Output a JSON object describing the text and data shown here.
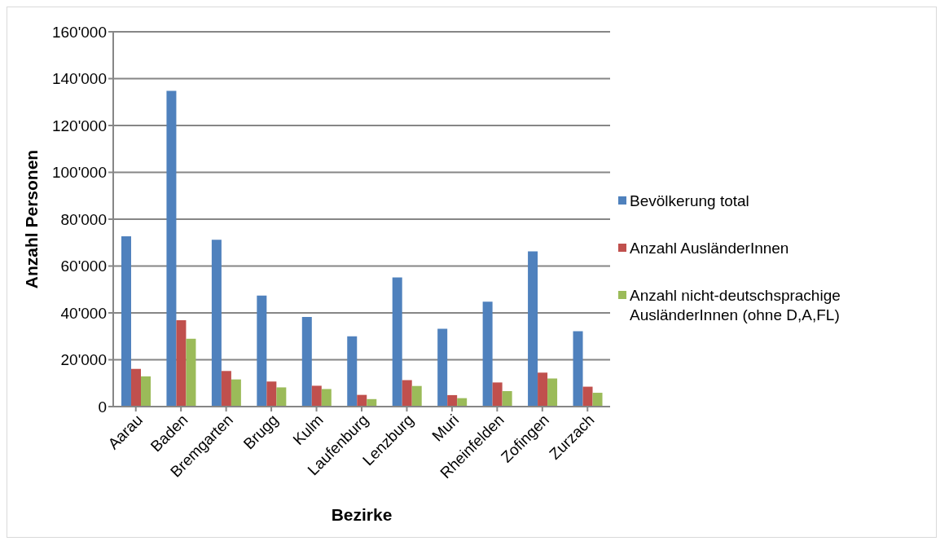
{
  "chart_data": {
    "type": "bar",
    "xlabel": "Bezirke",
    "ylabel": "Anzahl Personen",
    "categories": [
      "Aarau",
      "Baden",
      "Bremgarten",
      "Brugg",
      "Kulm",
      "Laufenburg",
      "Lenzburg",
      "Muri",
      "Rheinfelden",
      "Zofingen",
      "Zurzach"
    ],
    "series": [
      {
        "name": "Bevölkerung total",
        "color": "#4f81bd",
        "values": [
          72700,
          134800,
          71200,
          47400,
          38300,
          30000,
          55100,
          33200,
          44800,
          66300,
          32200
        ]
      },
      {
        "name": "Anzahl AusländerInnen",
        "color": "#c0504d",
        "values": [
          16100,
          36900,
          15200,
          10700,
          8900,
          5000,
          11300,
          4900,
          10300,
          14500,
          8500
        ]
      },
      {
        "name": "Anzahl nicht-deutschsprachige AusländerInnen (ohne D,A,FL)",
        "color": "#9bbb59",
        "values": [
          12900,
          29000,
          11600,
          8200,
          7500,
          3200,
          8800,
          3600,
          6600,
          12000,
          5900
        ]
      }
    ],
    "ylim": [
      0,
      160000
    ],
    "yticks": [
      0,
      {
        "value": 20000,
        "label": "20'000"
      },
      {
        "value": 40000,
        "label": "40'000"
      },
      {
        "value": 60000,
        "label": "60'000"
      },
      {
        "value": 80000,
        "label": "80'000"
      },
      {
        "value": 100000,
        "label": "100'000"
      },
      {
        "value": 120000,
        "label": "120'000"
      },
      {
        "value": 140000,
        "label": "140'000"
      },
      {
        "value": 160000,
        "label": "160'000"
      }
    ],
    "grid": "y",
    "legend": "right"
  }
}
